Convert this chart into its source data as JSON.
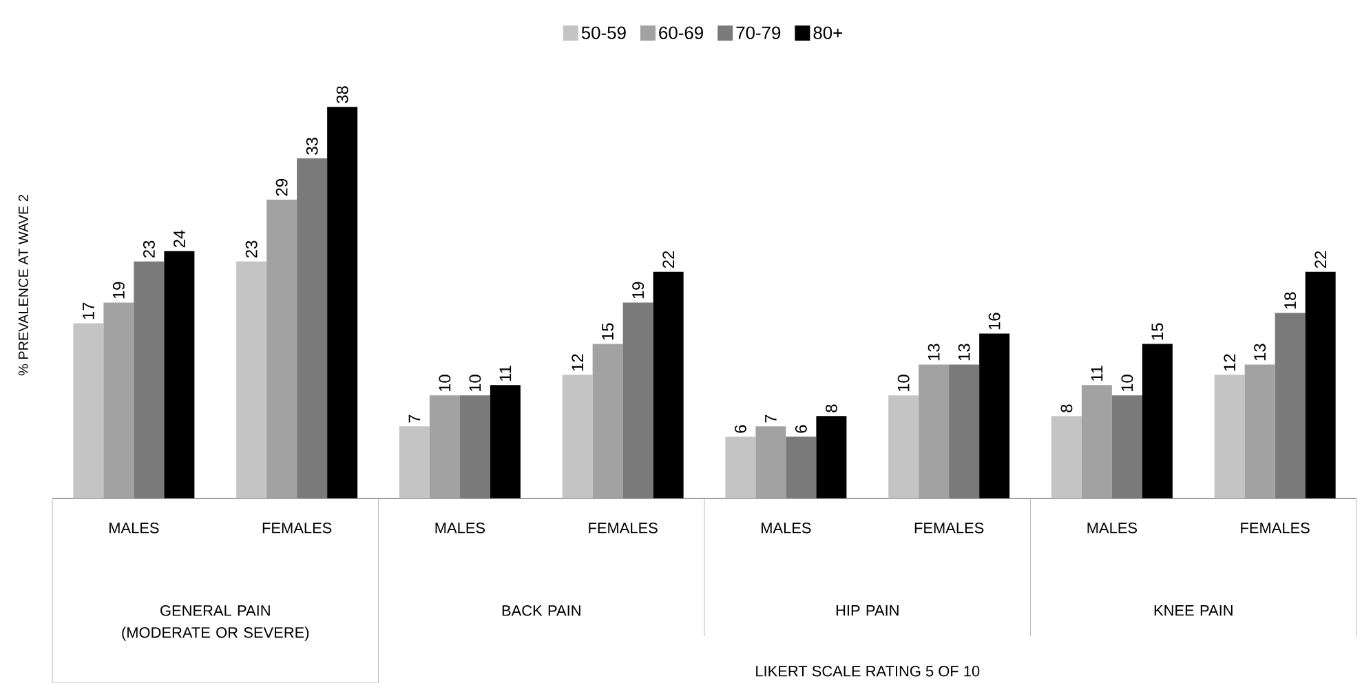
{
  "chart_data": {
    "type": "bar",
    "ylabel": "% PREVALENCE AT WAVE 2",
    "categories": [
      "MALES",
      "FEMALES",
      "MALES",
      "FEMALES",
      "MALES",
      "FEMALES",
      "MALES",
      "FEMALES"
    ],
    "series": [
      {
        "name": "50-59",
        "color": "#c4c4c4",
        "values": [
          17,
          23,
          7,
          12,
          6,
          10,
          8,
          12
        ]
      },
      {
        "name": "60-69",
        "color": "#a2a2a2",
        "values": [
          19,
          29,
          10,
          15,
          7,
          13,
          11,
          13
        ]
      },
      {
        "name": "70-79",
        "color": "#7a7a7a",
        "values": [
          23,
          33,
          10,
          19,
          6,
          13,
          10,
          18
        ]
      },
      {
        "name": "80+",
        "color": "#000000",
        "values": [
          24,
          38,
          11,
          22,
          8,
          16,
          15,
          22
        ]
      }
    ],
    "annotations": [
      "GENERAL PAIN (MODERATE OR SEVERE)",
      "BACK PAIN",
      "HIP PAIN",
      "KNEE PAIN",
      "LIKERT SCALE RATING 5 OF 10"
    ],
    "data_labels": true,
    "legend": "top"
  }
}
